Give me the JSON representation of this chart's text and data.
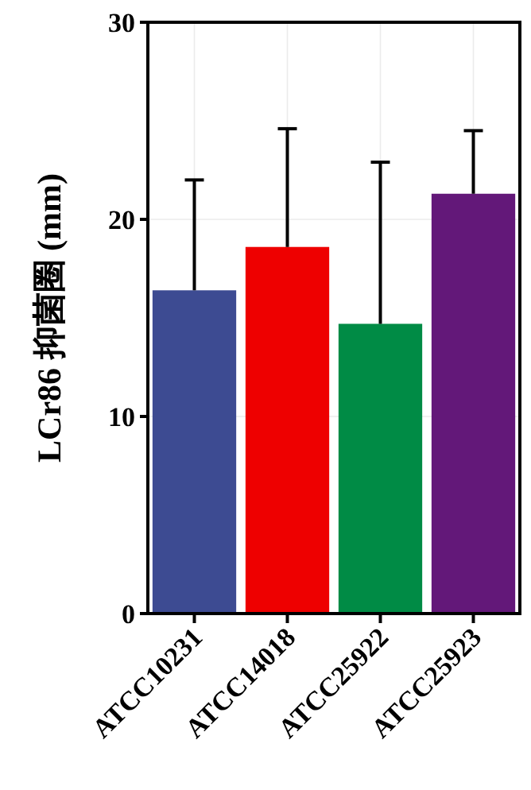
{
  "chart_data": {
    "type": "bar",
    "ylabel": "LCr86 抑菌圈 (mm)",
    "categories": [
      "ATCC10231",
      "ATCC14018",
      "ATCC25922",
      "ATCC25923"
    ],
    "values": [
      16.4,
      18.6,
      14.7,
      21.3
    ],
    "colors": [
      "#3d4b92",
      "#ee0000",
      "#008b45",
      "#631879"
    ],
    "errors": [
      [
        16.4,
        22.0
      ],
      [
        18.6,
        24.6
      ],
      [
        14.7,
        22.9
      ],
      [
        21.3,
        24.5
      ]
    ],
    "ylim": [
      0,
      30
    ],
    "yticks": [
      0,
      10,
      20,
      30
    ],
    "grid": true
  }
}
